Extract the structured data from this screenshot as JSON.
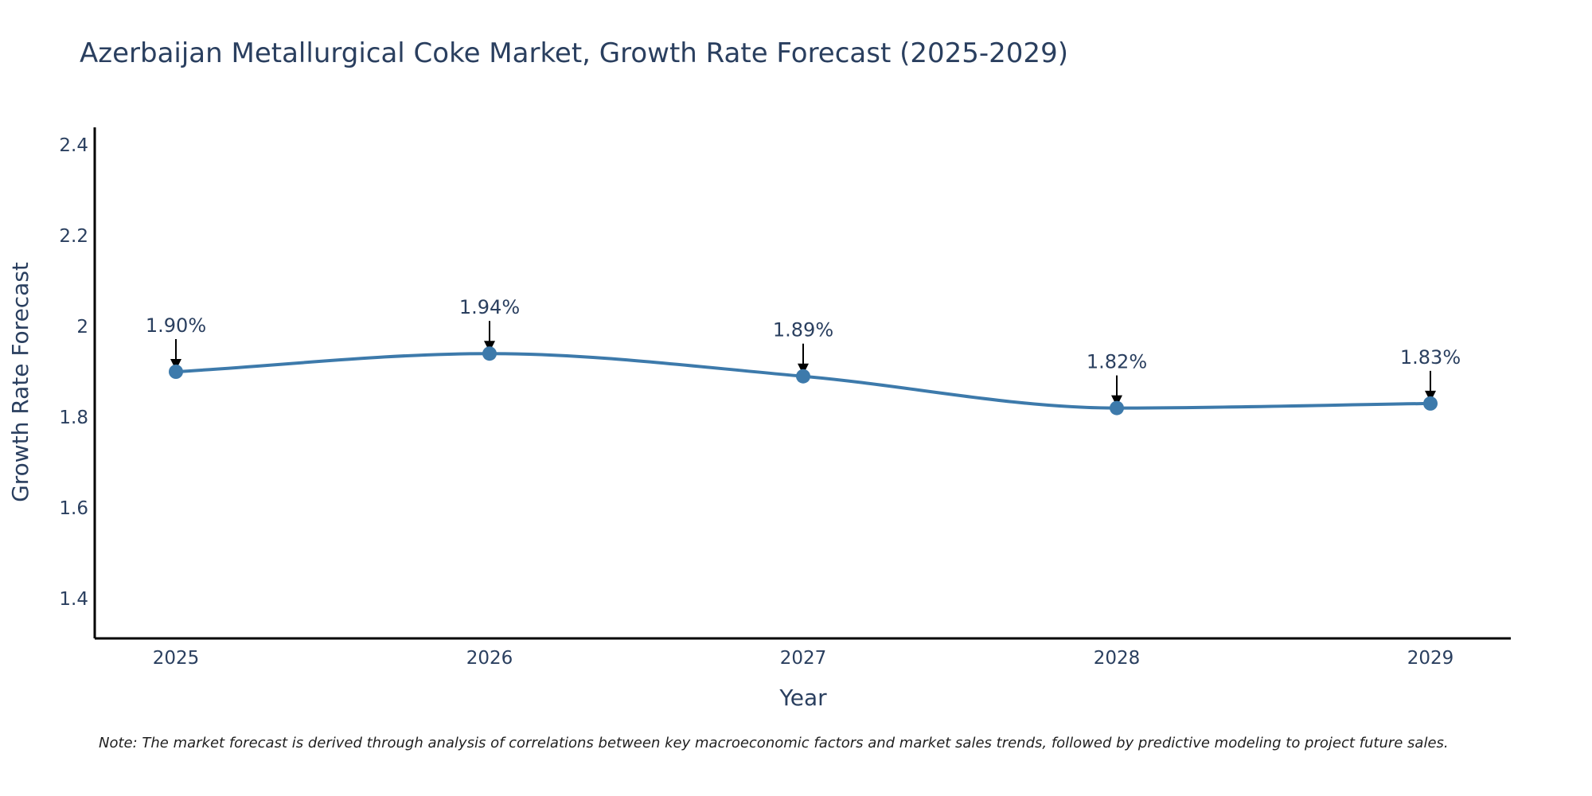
{
  "chart_data": {
    "type": "line",
    "title": "Azerbaijan Metallurgical Coke Market, Growth Rate Forecast (2025-2029)",
    "xlabel": "Year",
    "ylabel": "Growth Rate Forecast",
    "categories": [
      "2025",
      "2026",
      "2027",
      "2028",
      "2029"
    ],
    "series": [
      {
        "name": "Growth Rate Forecast",
        "values": [
          1.9,
          1.94,
          1.89,
          1.82,
          1.83
        ],
        "labels": [
          "1.90%",
          "1.94%",
          "1.89%",
          "1.82%",
          "1.83%"
        ]
      }
    ],
    "ylim": [
      1.31,
      2.44
    ],
    "yticks": [
      1.4,
      1.6,
      1.8,
      2.0,
      2.2,
      2.4
    ],
    "ytick_labels": [
      "1.4",
      "1.6",
      "1.8",
      "2",
      "2.2",
      "2.4"
    ],
    "grid": false,
    "line_color": "#3d7aab",
    "axis_color": "#000000",
    "note": "Note: The market forecast is derived through analysis of correlations between key macroeconomic factors and market sales trends, followed by predictive modeling to project future sales."
  }
}
